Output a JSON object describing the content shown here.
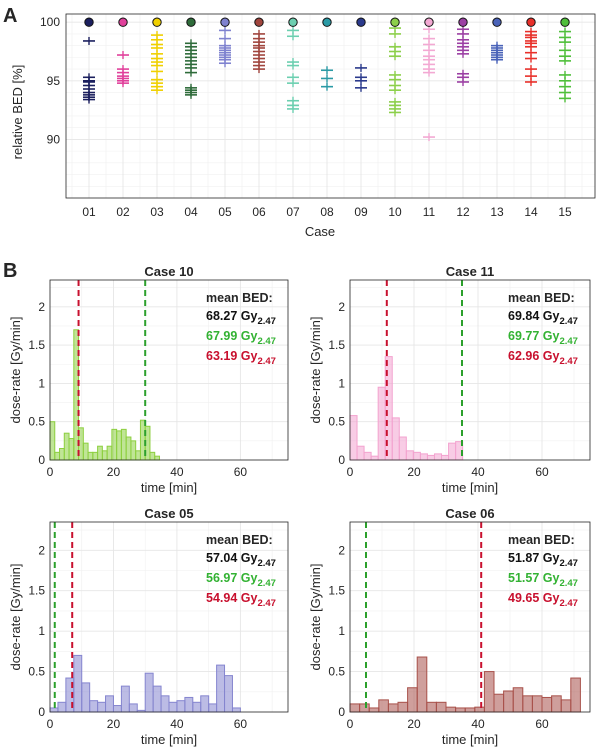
{
  "panel_labels": {
    "a": "A",
    "b": "B"
  },
  "colors": {
    "grid": "#e6e6e6",
    "axis": "#262626",
    "red_line": "#c8102e",
    "green_line": "#2ca02c",
    "text_black": "#111111",
    "text_green": "#33b233",
    "text_red": "#c8102e"
  },
  "chart_data": [
    {
      "type": "scatter",
      "title": "",
      "xlabel": "Case",
      "ylabel": "relative BED [%]",
      "ylim": [
        85,
        100.7
      ],
      "yticks": [
        90,
        95,
        100
      ],
      "categories": [
        "01",
        "02",
        "03",
        "04",
        "05",
        "06",
        "07",
        "08",
        "09",
        "10",
        "11",
        "12",
        "13",
        "14",
        "15"
      ],
      "case_colors": [
        "#1b1f5e",
        "#e0409b",
        "#f0d000",
        "#2e6b3a",
        "#7f82cf",
        "#a0453d",
        "#6ccfb0",
        "#2a9aa5",
        "#2b3a8c",
        "#8ccf4a",
        "#f3a9d3",
        "#9b3fa3",
        "#4a63b8",
        "#e8302a",
        "#4fbf3a"
      ],
      "reference": [
        100,
        100,
        100,
        100,
        100,
        100,
        100,
        100,
        100,
        100,
        100,
        100,
        100,
        100,
        100
      ],
      "series": [
        {
          "name": "01",
          "values": [
            98.4,
            95.3,
            95.0,
            94.9,
            94.6,
            94.3,
            94.0,
            93.8,
            93.6,
            93.4
          ]
        },
        {
          "name": "02",
          "values": [
            97.2,
            96.0,
            95.7,
            95.4,
            95.2,
            95.0,
            94.8
          ]
        },
        {
          "name": "03",
          "values": [
            98.9,
            98.5,
            98.1,
            97.8,
            97.3,
            96.9,
            96.6,
            96.3,
            95.8,
            95.1,
            94.8,
            94.5,
            94.2
          ]
        },
        {
          "name": "04",
          "values": [
            98.2,
            97.9,
            97.6,
            97.3,
            97.0,
            96.7,
            96.4,
            96.1,
            95.7,
            94.4,
            94.2,
            94.0,
            93.8
          ]
        },
        {
          "name": "05",
          "values": [
            99.3,
            98.6,
            98.0,
            97.8,
            97.6,
            97.4,
            97.2,
            97.0,
            96.8,
            96.5
          ]
        },
        {
          "name": "06",
          "values": [
            99.0,
            98.6,
            98.3,
            98.0,
            97.8,
            97.5,
            97.2,
            96.9,
            96.6,
            96.3,
            96.0
          ]
        },
        {
          "name": "07",
          "values": [
            99.3,
            98.8,
            96.6,
            96.3,
            95.3,
            94.8,
            93.3,
            92.9,
            92.6
          ]
        },
        {
          "name": "08",
          "values": [
            95.9,
            95.2,
            94.5
          ]
        },
        {
          "name": "09",
          "values": [
            96.1,
            95.3,
            95.0,
            94.4
          ]
        },
        {
          "name": "10",
          "values": [
            99.5,
            99.0,
            97.9,
            97.5,
            97.1,
            95.5,
            95.1,
            94.6,
            94.2,
            93.2,
            92.9,
            92.6,
            92.3
          ]
        },
        {
          "name": "11",
          "values": [
            99.4,
            98.6,
            98.1,
            97.6,
            97.1,
            96.8,
            96.4,
            96.0,
            95.7,
            90.2
          ]
        },
        {
          "name": "12",
          "values": [
            99.4,
            99.0,
            98.5,
            98.2,
            97.9,
            97.6,
            97.3,
            95.6,
            95.3,
            94.9
          ]
        },
        {
          "name": "13",
          "values": [
            98.0,
            97.8,
            97.6,
            97.4,
            97.2,
            97.0,
            96.8
          ]
        },
        {
          "name": "14",
          "values": [
            99.2,
            98.9,
            98.7,
            98.4,
            98.2,
            97.9,
            97.4,
            96.9,
            96.0,
            95.4,
            94.9
          ]
        },
        {
          "name": "15",
          "values": [
            99.2,
            98.7,
            98.3,
            97.6,
            97.1,
            96.7,
            95.5,
            95.0,
            94.5,
            94.0,
            93.5
          ]
        }
      ]
    },
    {
      "type": "bar",
      "title": "Case 10",
      "xlabel": "time [min]",
      "ylabel": "dose-rate [Gy/min]",
      "xlim": [
        0,
        75
      ],
      "ylim": [
        0,
        2.35
      ],
      "xticks": [
        0,
        20,
        40,
        60
      ],
      "yticks": [
        0,
        0.5,
        1,
        1.5,
        2
      ],
      "xtick_labels": [
        "0",
        "20",
        "40",
        "60"
      ],
      "ytick_labels": [
        "0",
        "0.5",
        "1",
        "1.5",
        "2"
      ],
      "bin_width": 1.5,
      "bar_color": "#8dcf3f",
      "red_x": 9.0,
      "green_x": 30.0,
      "values": [
        0.5,
        0.1,
        0.15,
        0.35,
        0.28,
        1.7,
        0.42,
        0.22,
        0.1,
        0.1,
        0.18,
        0.12,
        0.18,
        0.4,
        0.38,
        0.4,
        0.3,
        0.25,
        0.12,
        0.52,
        0.44,
        0.1,
        0.05
      ],
      "bed_labels": {
        "title": "mean BED:",
        "mean_value": "68.27 Gy",
        "green_value": "67.99 Gy",
        "red_value": "63.19 Gy",
        "subscript": "2.47"
      }
    },
    {
      "type": "bar",
      "title": "Case 11",
      "xlabel": "time [min]",
      "ylabel": "dose-rate [Gy/min]",
      "xlim": [
        0,
        75
      ],
      "ylim": [
        0,
        2.35
      ],
      "xticks": [
        0,
        20,
        40,
        60
      ],
      "yticks": [
        0,
        0.5,
        1,
        1.5,
        2
      ],
      "xtick_labels": [
        "0",
        "20",
        "40",
        "60"
      ],
      "ytick_labels": [
        "0",
        "0.5",
        "1",
        "1.5",
        "2"
      ],
      "bin_width": 2.2,
      "bar_color": "#f3a3cf",
      "red_x": 11.5,
      "green_x": 35.0,
      "values": [
        0.58,
        0.18,
        0.1,
        0.05,
        0.95,
        1.35,
        0.55,
        0.3,
        0.12,
        0.1,
        0.08,
        0.06,
        0.08,
        0.06,
        0.22,
        0.24
      ],
      "bed_labels": {
        "title": "mean BED:",
        "mean_value": "69.84 Gy",
        "green_value": "69.77 Gy",
        "red_value": "62.96 Gy",
        "subscript": "2.47"
      }
    },
    {
      "type": "bar",
      "title": "Case 05",
      "xlabel": "time [min]",
      "ylabel": "dose-rate [Gy/min]",
      "xlim": [
        0,
        75
      ],
      "ylim": [
        0,
        2.35
      ],
      "xticks": [
        0,
        20,
        40,
        60
      ],
      "yticks": [
        0,
        0.5,
        1,
        1.5,
        2
      ],
      "xtick_labels": [
        "0",
        "20",
        "40",
        "60"
      ],
      "ytick_labels": [
        "0",
        "0.5",
        "1",
        "1.5",
        "2"
      ],
      "bin_width": 2.5,
      "bar_color": "#8585cf",
      "red_x": 7.0,
      "green_x": 1.5,
      "values": [
        0.05,
        0.12,
        0.42,
        0.7,
        0.36,
        0.14,
        0.12,
        0.2,
        0.08,
        0.32,
        0.1,
        0.02,
        0.48,
        0.32,
        0.2,
        0.12,
        0.14,
        0.18,
        0.12,
        0.2,
        0.1,
        0.58,
        0.45,
        0.05
      ],
      "bed_labels": {
        "title": "mean BED:",
        "mean_value": "57.04 Gy",
        "green_value": "56.97 Gy",
        "red_value": "54.94 Gy",
        "subscript": "2.47"
      }
    },
    {
      "type": "bar",
      "title": "Case 06",
      "xlabel": "time [min]",
      "ylabel": "dose-rate [Gy/min]",
      "xlim": [
        0,
        75
      ],
      "ylim": [
        0,
        2.35
      ],
      "xticks": [
        0,
        20,
        40,
        60
      ],
      "yticks": [
        0,
        0.5,
        1,
        1.5,
        2
      ],
      "xtick_labels": [
        "0",
        "20",
        "40",
        "60"
      ],
      "ytick_labels": [
        "0",
        "0.5",
        "1",
        "1.5",
        "2"
      ],
      "bin_width": 3.0,
      "bar_color": "#a8514a",
      "red_x": 41.0,
      "green_x": 5.0,
      "values": [
        0.1,
        0.1,
        0.05,
        0.15,
        0.1,
        0.12,
        0.3,
        0.68,
        0.12,
        0.12,
        0.06,
        0.05,
        0.05,
        0.06,
        0.5,
        0.22,
        0.26,
        0.3,
        0.2,
        0.2,
        0.18,
        0.2,
        0.15,
        0.42
      ],
      "bed_labels": {
        "title": "mean BED:",
        "mean_value": "51.87 Gy",
        "green_value": "51.57 Gy",
        "red_value": "49.65 Gy",
        "subscript": "2.47"
      }
    }
  ]
}
